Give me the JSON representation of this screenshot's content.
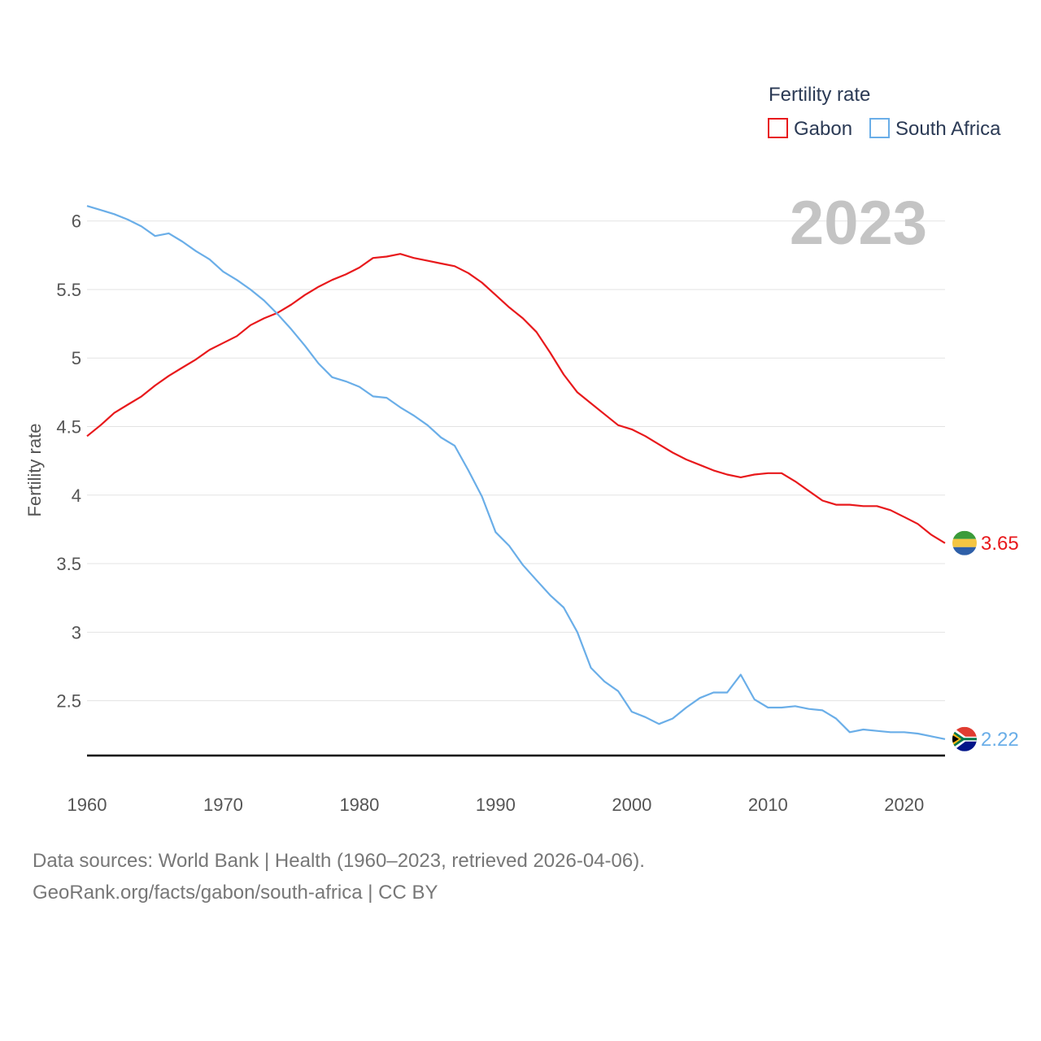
{
  "chart_data": {
    "type": "line",
    "title": "Fertility rate",
    "ylabel": "Fertility rate",
    "xlabel": "",
    "year_label": "2023",
    "xlim": [
      1960,
      2023
    ],
    "ylim": [
      2.1,
      6.2
    ],
    "x_ticks": [
      1960,
      1970,
      1980,
      1990,
      2000,
      2010,
      2020
    ],
    "y_ticks": [
      2.5,
      3,
      3.5,
      4,
      4.5,
      5,
      5.5,
      6
    ],
    "y_tick_labels": [
      "2.5",
      "3",
      "3.5",
      "4",
      "4.5",
      "5",
      "5.5",
      "6"
    ],
    "x_tick_labels": [
      "1960",
      "1970",
      "1980",
      "1990",
      "2000",
      "2010",
      "2020"
    ],
    "x": [
      1960,
      1961,
      1962,
      1963,
      1964,
      1965,
      1966,
      1967,
      1968,
      1969,
      1970,
      1971,
      1972,
      1973,
      1974,
      1975,
      1976,
      1977,
      1978,
      1979,
      1980,
      1981,
      1982,
      1983,
      1984,
      1985,
      1986,
      1987,
      1988,
      1989,
      1990,
      1991,
      1992,
      1993,
      1994,
      1995,
      1996,
      1997,
      1998,
      1999,
      2000,
      2001,
      2002,
      2003,
      2004,
      2005,
      2006,
      2007,
      2008,
      2009,
      2010,
      2011,
      2012,
      2013,
      2014,
      2015,
      2016,
      2017,
      2018,
      2019,
      2020,
      2021,
      2022,
      2023
    ],
    "series": [
      {
        "name": "Gabon",
        "color": "#e8191c",
        "end_label": "3.65",
        "values": [
          4.43,
          4.51,
          4.6,
          4.66,
          4.72,
          4.8,
          4.87,
          4.93,
          4.99,
          5.06,
          5.11,
          5.16,
          5.24,
          5.29,
          5.33,
          5.39,
          5.46,
          5.52,
          5.57,
          5.61,
          5.66,
          5.73,
          5.74,
          5.76,
          5.73,
          5.71,
          5.69,
          5.67,
          5.62,
          5.55,
          5.46,
          5.37,
          5.29,
          5.19,
          5.04,
          4.88,
          4.75,
          4.67,
          4.59,
          4.51,
          4.48,
          4.43,
          4.37,
          4.31,
          4.26,
          4.22,
          4.18,
          4.15,
          4.13,
          4.15,
          4.16,
          4.16,
          4.1,
          4.03,
          3.96,
          3.93,
          3.93,
          3.92,
          3.92,
          3.89,
          3.84,
          3.79,
          3.71,
          3.65
        ]
      },
      {
        "name": "South Africa",
        "color": "#6aaee8",
        "end_label": "2.22",
        "values": [
          6.11,
          6.08,
          6.05,
          6.01,
          5.96,
          5.89,
          5.91,
          5.85,
          5.78,
          5.72,
          5.63,
          5.57,
          5.5,
          5.42,
          5.32,
          5.21,
          5.09,
          4.96,
          4.86,
          4.83,
          4.79,
          4.72,
          4.71,
          4.64,
          4.58,
          4.51,
          4.42,
          4.36,
          4.18,
          3.99,
          3.73,
          3.63,
          3.49,
          3.38,
          3.27,
          3.18,
          3.0,
          2.74,
          2.64,
          2.57,
          2.42,
          2.38,
          2.33,
          2.37,
          2.45,
          2.52,
          2.56,
          2.56,
          2.69,
          2.51,
          2.45,
          2.45,
          2.46,
          2.44,
          2.43,
          2.37,
          2.27,
          2.29,
          2.28,
          2.27,
          2.27,
          2.26,
          2.24,
          2.22
        ]
      }
    ],
    "legend": {
      "title": "Fertility rate",
      "placement": "top-right"
    }
  },
  "footer": {
    "line1": "Data sources: World Bank | Health (1960–2023, retrieved 2026-04-06).",
    "line2": "GeoRank.org/facts/gabon/south-africa | CC BY"
  },
  "colors": {
    "gabon_flag": [
      "#3a9b3a",
      "#f4c542",
      "#2e5fa8"
    ],
    "south_africa_flag": [
      "#e03c31",
      "#001489",
      "#007749",
      "#ffb612",
      "#000000",
      "#ffffff"
    ]
  }
}
